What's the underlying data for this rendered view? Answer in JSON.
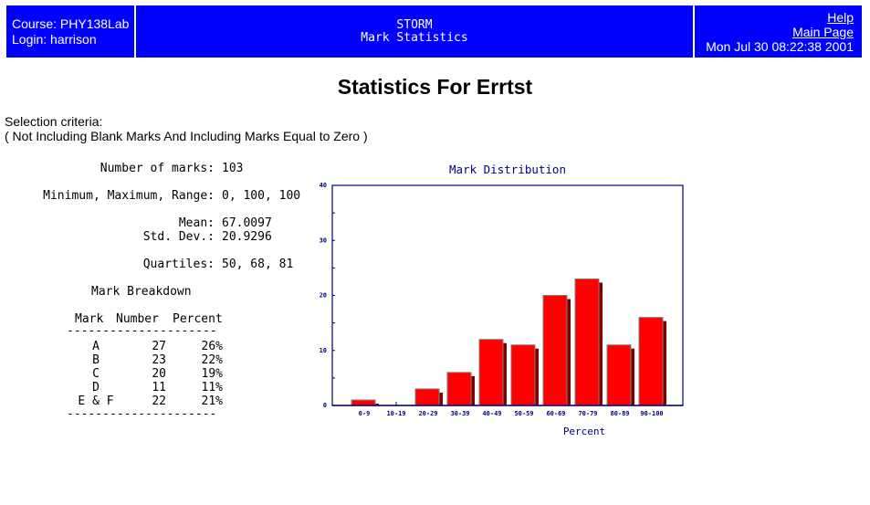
{
  "header": {
    "course_label": "Course: PHY138Lab",
    "login_label": "Login: harrison",
    "app_name": "STORM",
    "app_subtitle": "Mark Statistics",
    "help_link": "Help",
    "main_page_link": "Main Page",
    "timestamp": "Mon Jul 30 08:22:38 2001"
  },
  "page": {
    "title": "Statistics For Errtst",
    "criteria_label": "Selection criteria:",
    "criteria_value": "( Not Including Blank Marks And Including Marks Equal to Zero )"
  },
  "stats": {
    "count_label": "Number of marks:",
    "count_value": "103",
    "range_label": "Minimum, Maximum, Range:",
    "range_value": "0, 100, 100",
    "mean_label": "Mean:",
    "mean_value": "67.0097",
    "std_label": "Std. Dev.:",
    "std_value": "20.9296",
    "quartiles_label": "Quartiles:",
    "quartiles_value": "50, 68, 81"
  },
  "breakdown": {
    "title": "Mark Breakdown",
    "headers": [
      "Mark",
      "Number",
      "Percent"
    ],
    "separator": "---------------------",
    "rows": [
      {
        "mark": "A",
        "number": "27",
        "percent": "26%"
      },
      {
        "mark": "B",
        "number": "23",
        "percent": "22%"
      },
      {
        "mark": "C",
        "number": "20",
        "percent": "19%"
      },
      {
        "mark": "D",
        "number": "11",
        "percent": "11%"
      },
      {
        "mark": "E & F",
        "number": "22",
        "percent": "21%"
      }
    ]
  },
  "colors": {
    "header_bg": "#0000ff",
    "axis": "#000080",
    "bar": "#ff0000",
    "bar_shadow": "#800000"
  },
  "chart_data": {
    "type": "bar",
    "title": "Mark Distribution",
    "xlabel": "Percent",
    "ylabel": "",
    "categories": [
      "0-9",
      "10-19",
      "20-29",
      "30-39",
      "40-49",
      "50-59",
      "60-69",
      "70-79",
      "80-89",
      "90-100"
    ],
    "values": [
      1,
      0,
      3,
      6,
      12,
      11,
      20,
      23,
      11,
      16
    ],
    "ylim": [
      0,
      40
    ],
    "yticks": [
      0,
      10,
      20,
      30,
      40
    ],
    "grid": false,
    "legend": null
  }
}
